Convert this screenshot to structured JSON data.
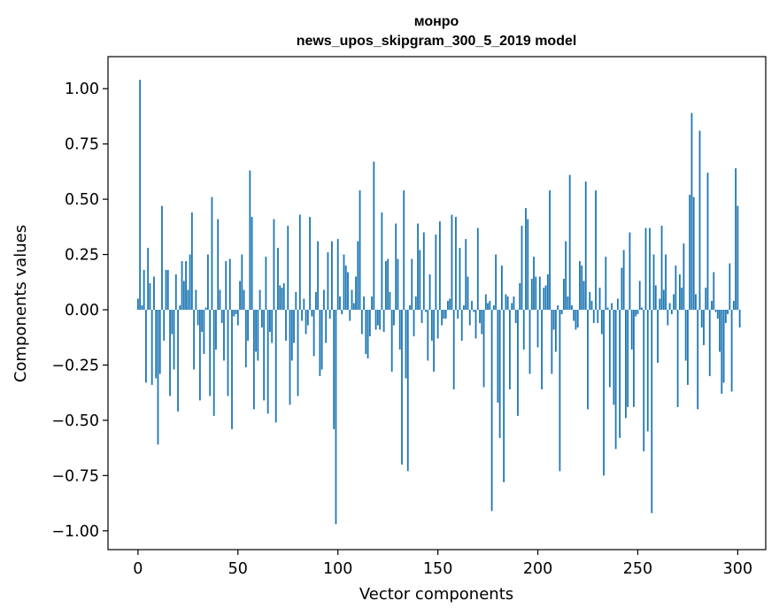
{
  "chart_data": {
    "type": "bar",
    "title_line1": "монро",
    "title_line2": "news_upos_skipgram_300_5_2019 model",
    "xlabel": "Vector components",
    "ylabel": "Components values",
    "xlim": [
      -15,
      314
    ],
    "ylim": [
      -1.085,
      1.145
    ],
    "xticks": [
      0,
      50,
      100,
      150,
      200,
      250,
      300
    ],
    "xtick_labels": [
      "0",
      "50",
      "100",
      "150",
      "200",
      "250",
      "300"
    ],
    "yticks": [
      1.0,
      0.75,
      0.5,
      0.25,
      0.0,
      -0.25,
      -0.5,
      -0.75,
      -1.0
    ],
    "ytick_labels": [
      "1.00",
      "0.75",
      "0.50",
      "0.25",
      "0.00",
      "−0.25",
      "−0.50",
      "−0.75",
      "−1.00"
    ],
    "bar_color": "#1f77b4",
    "values": [
      0.05,
      1.04,
      0.02,
      0.18,
      -0.33,
      0.28,
      0.12,
      -0.34,
      0.15,
      -0.31,
      -0.61,
      -0.29,
      0.47,
      -0.14,
      0.18,
      0.18,
      -0.39,
      -0.11,
      -0.27,
      0.16,
      -0.46,
      0.02,
      0.22,
      0.13,
      0.22,
      0.09,
      0.25,
      0.44,
      -0.27,
      0.09,
      -0.07,
      -0.41,
      -0.1,
      -0.2,
      0.01,
      0.25,
      -0.39,
      0.51,
      -0.48,
      -0.18,
      0.41,
      0.09,
      -0.06,
      -0.23,
      0.22,
      -0.39,
      0.23,
      -0.54,
      -0.03,
      -0.02,
      -0.07,
      0.13,
      0.25,
      0.09,
      -0.26,
      -0.14,
      0.63,
      0.42,
      -0.45,
      -0.19,
      -0.23,
      0.09,
      -0.08,
      -0.41,
      0.24,
      -0.47,
      -0.1,
      -0.15,
      0.41,
      -0.51,
      0.28,
      0.11,
      0.1,
      0.12,
      -0.14,
      0.38,
      -0.43,
      -0.23,
      -0.15,
      0.08,
      -0.39,
      0.43,
      -0.05,
      0.05,
      -0.11,
      -0.07,
      0.42,
      -0.03,
      -0.21,
      0.08,
      0.31,
      -0.3,
      -0.27,
      0.09,
      -0.15,
      0.26,
      -0.04,
      0.31,
      -0.54,
      -0.97,
      0.32,
      0.06,
      -0.02,
      0.25,
      0.2,
      0.17,
      -0.05,
      0.09,
      0.03,
      0.15,
      0.31,
      0.54,
      -0.11,
      0.06,
      -0.2,
      -0.22,
      -0.12,
      0.06,
      0.67,
      -0.09,
      -0.07,
      -0.09,
      0.44,
      -0.1,
      0.22,
      0.23,
      0.08,
      -0.28,
      -0.07,
      0.39,
      0.23,
      -0.18,
      -0.7,
      0.54,
      -0.31,
      -0.73,
      0.02,
      0.23,
      -0.12,
      0.06,
      0.39,
      0.27,
      -0.06,
      0.35,
      -0.01,
      -0.23,
      0.16,
      -0.14,
      -0.28,
      0.34,
      -0.13,
      0.4,
      -0.07,
      -0.04,
      -0.04,
      0.04,
      0.05,
      0.43,
      -0.36,
      0.42,
      -0.04,
      0.28,
      -0.14,
      0.02,
      0.32,
      0.15,
      -0.07,
      0.04,
      -0.01,
      -0.13,
      0.37,
      -0.06,
      -0.11,
      -0.35,
      0.07,
      0.03,
      0.04,
      -0.91,
      0.02,
      0.25,
      -0.42,
      -0.58,
      0.2,
      -0.78,
      0.07,
      0.06,
      -0.36,
      0.03,
      0.06,
      -0.06,
      -0.48,
      0.12,
      0.38,
      -0.18,
      0.46,
      0.41,
      -0.29,
      0.14,
      0.24,
      0.15,
      -0.17,
      0.15,
      -0.36,
      0.1,
      0.11,
      0.16,
      0.54,
      -0.29,
      -0.09,
      -0.19,
      0.02,
      -0.73,
      -0.02,
      0.14,
      0.31,
      0.06,
      0.61,
      0.02,
      -0.05,
      -0.09,
      -0.08,
      0.22,
      0.2,
      0.13,
      0.58,
      -0.45,
      0.08,
      0.04,
      -0.06,
      0.54,
      -0.06,
      0.1,
      -0.11,
      -0.75,
      0.24,
      0.01,
      -0.35,
      0.03,
      -0.43,
      -0.63,
      0.05,
      -0.58,
      0.19,
      0.27,
      -0.49,
      -0.44,
      0.35,
      -0.18,
      -0.44,
      -0.03,
      -0.02,
      0.13,
      0.01,
      -0.64,
      0.37,
      -0.55,
      0.37,
      -0.92,
      0.25,
      0.11,
      -0.24,
      0.05,
      0.38,
      0.09,
      0.25,
      -0.07,
      0.03,
      -0.02,
      0.07,
      0.2,
      -0.44,
      0.16,
      0.1,
      0.3,
      -0.23,
      -0.34,
      0.52,
      0.89,
      0.51,
      0.07,
      -0.45,
      0.81,
      -0.08,
      -0.16,
      0.1,
      0.62,
      -0.3,
      0.04,
      0.17,
      -0.01,
      -0.04,
      -0.19,
      -0.38,
      -0.33,
      -0.06,
      -0.02,
      0.21,
      -0.37,
      0.04,
      0.64,
      0.47,
      -0.08
    ]
  }
}
